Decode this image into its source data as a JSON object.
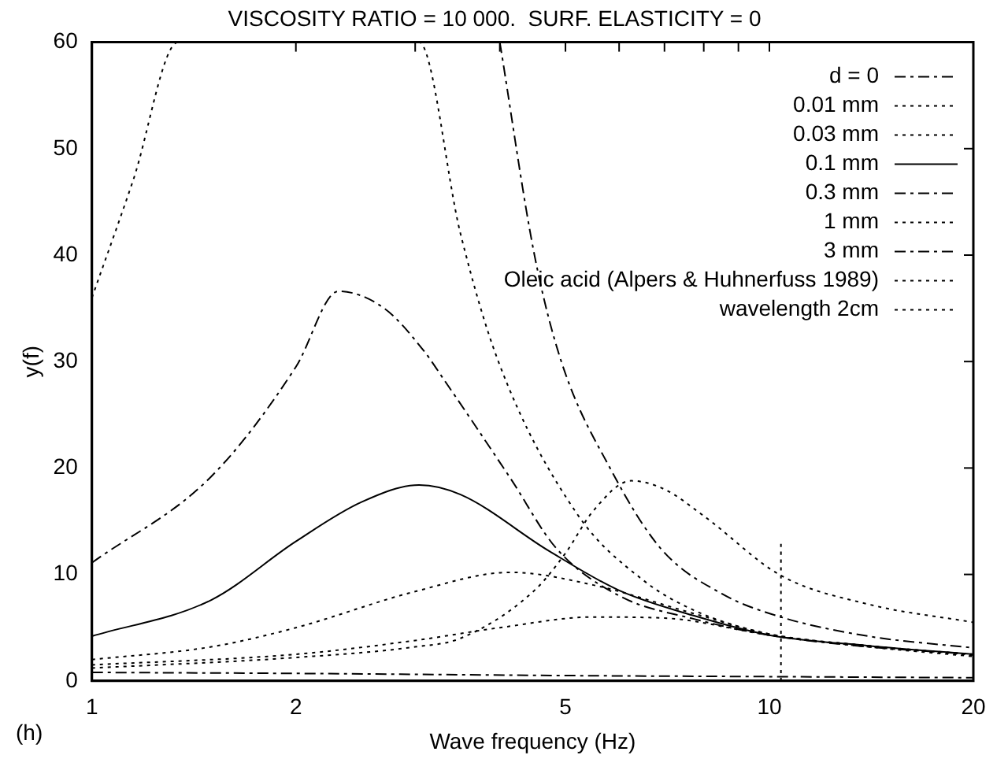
{
  "chart_data": {
    "type": "line",
    "title": "VISCOSITY RATIO = 10 000.  SURF. ELASTICITY = 0",
    "xlabel": "Wave frequency (Hz)",
    "ylabel": "y(f)",
    "annotations": [
      "(h)"
    ],
    "log": "x",
    "xlim": [
      1,
      20
    ],
    "xticks": [
      1,
      2,
      {
        "value": 3,
        "label": null
      },
      {
        "value": 4,
        "label": null
      },
      5,
      {
        "value": 6,
        "label": null
      },
      {
        "value": 7,
        "label": null
      },
      {
        "value": 8,
        "label": null
      },
      {
        "value": 9,
        "label": null
      },
      10,
      20
    ],
    "ylim": [
      0,
      60
    ],
    "yticks": [
      0,
      10,
      20,
      30,
      40,
      50,
      60
    ],
    "grid": false,
    "legend": "top right",
    "marker": "none",
    "series": [
      {
        "name": "d = 0",
        "color": "#000000",
        "line_style": "dashed",
        "x": [
          1,
          2,
          5,
          10,
          20
        ],
        "values": [
          0.8,
          0.7,
          0.5,
          0.4,
          0.3
        ]
      },
      {
        "name": "0.01 mm",
        "color": "#000000",
        "line_style": "dotted",
        "x": [
          1,
          2,
          3,
          4,
          5.5,
          7,
          10,
          14,
          20
        ],
        "values": [
          1.5,
          2.5,
          3.8,
          5,
          6,
          5.9,
          4.3,
          3.2,
          2.3
        ]
      },
      {
        "name": "0.03 mm",
        "color": "#000000",
        "line_style": "dotted",
        "x": [
          1,
          1.5,
          2,
          3,
          4.15,
          5.5,
          7.76,
          10,
          14,
          20
        ],
        "values": [
          2,
          3.2,
          5,
          8.4,
          10.2,
          9,
          6.3,
          4.4,
          3.3,
          2.5
        ]
      },
      {
        "name": "0.1 mm",
        "color": "#000000",
        "line_style": "solid",
        "x": [
          1,
          1.5,
          2,
          2.5,
          3.04,
          3.5,
          4.73,
          6,
          7.76,
          10,
          14,
          20
        ],
        "values": [
          4.2,
          7.6,
          13.1,
          16.8,
          18.4,
          17.5,
          12.2,
          8.5,
          6.1,
          4.3,
          3.3,
          2.5
        ]
      },
      {
        "name": "0.3 mm",
        "color": "#000000",
        "line_style": "dashed",
        "x": [
          1,
          1.5,
          2,
          2.31,
          2.7,
          3.09,
          3.3,
          4.15,
          4.84,
          6,
          7.76,
          10,
          14,
          20
        ],
        "values": [
          11.1,
          19.2,
          29.5,
          36.6,
          35,
          31,
          28.4,
          19,
          12.5,
          8,
          5.8,
          4.3,
          3.2,
          2.5
        ]
      },
      {
        "name": "1 mm",
        "color": "#000000",
        "line_style": "dotted",
        "x": [
          1,
          1.15,
          1.34,
          3.04,
          3.5,
          3.97,
          5.2,
          6.5,
          7.76,
          10,
          14,
          20
        ],
        "values": [
          36,
          47,
          60,
          60,
          42,
          30.2,
          15.7,
          9.5,
          6.6,
          4.4,
          3.3,
          2.4
        ]
      },
      {
        "name": "3 mm",
        "color": "#000000",
        "line_style": "dashed",
        "x": [
          4,
          4.5,
          4.93,
          5.84,
          6.92,
          8.5,
          10.4,
          14,
          20
        ],
        "values": [
          60,
          40,
          30,
          19.8,
          12.4,
          8.2,
          6,
          4.2,
          3.1
        ]
      },
      {
        "name": "Oleic acid (Alpers & Huhnerfuss 1989)",
        "color": "#000000",
        "line_style": "dotted",
        "x": [
          1,
          2,
          3,
          3.5,
          4.5,
          5,
          5.5,
          6.25,
          7,
          8,
          10.4,
          14,
          20
        ],
        "values": [
          1.2,
          2.2,
          3.2,
          4,
          8.5,
          12,
          16,
          18.8,
          18,
          15.5,
          9.9,
          7.2,
          5.5
        ]
      },
      {
        "name": "wavelength 2cm",
        "color": "#000000",
        "line_style": "dotted",
        "x": [
          10.4,
          10.4
        ],
        "values": [
          0,
          13.1
        ]
      }
    ]
  }
}
